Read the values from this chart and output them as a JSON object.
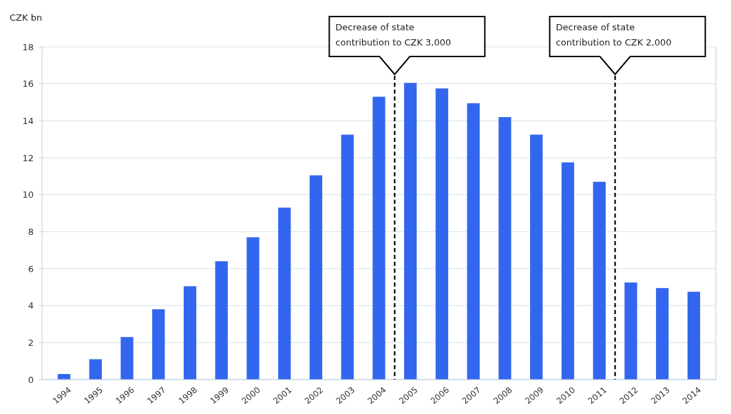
{
  "chart_data": {
    "type": "bar",
    "ylabel": "CZK bn",
    "x": [
      1994,
      1995,
      1996,
      1997,
      1998,
      1999,
      2000,
      2001,
      2002,
      2003,
      2004,
      2005,
      2006,
      2007,
      2008,
      2009,
      2010,
      2011,
      2012,
      2013,
      2014
    ],
    "values": [
      0.3,
      1.1,
      2.3,
      3.8,
      5.05,
      6.4,
      7.7,
      9.3,
      11.05,
      13.25,
      15.3,
      16.05,
      15.75,
      14.95,
      14.2,
      13.25,
      11.75,
      10.7,
      5.25,
      4.95,
      4.75
    ],
    "color": "#3366ee",
    "xlim": [
      1993.3,
      2014.7
    ],
    "xticks": [
      1994,
      1995,
      1996,
      1997,
      1998,
      1999,
      2000,
      2001,
      2002,
      2003,
      2004,
      2005,
      2006,
      2007,
      2008,
      2009,
      2010,
      2011,
      2012,
      2013,
      2014
    ],
    "ylim": [
      0,
      18
    ],
    "yticks": [
      0,
      2,
      4,
      6,
      8,
      10,
      12,
      14,
      16,
      18
    ],
    "grid": "y",
    "ref_lines": [
      {
        "axis": "x",
        "value": 2004.5,
        "label": "Decrease of state contribution to CZK 3,000",
        "color": "#000000",
        "line_style": "dashed"
      },
      {
        "axis": "x",
        "value": 2011.5,
        "label": "Decrease of state contribution to CZK 2,000",
        "color": "#000000",
        "line_style": "dashed"
      }
    ]
  }
}
